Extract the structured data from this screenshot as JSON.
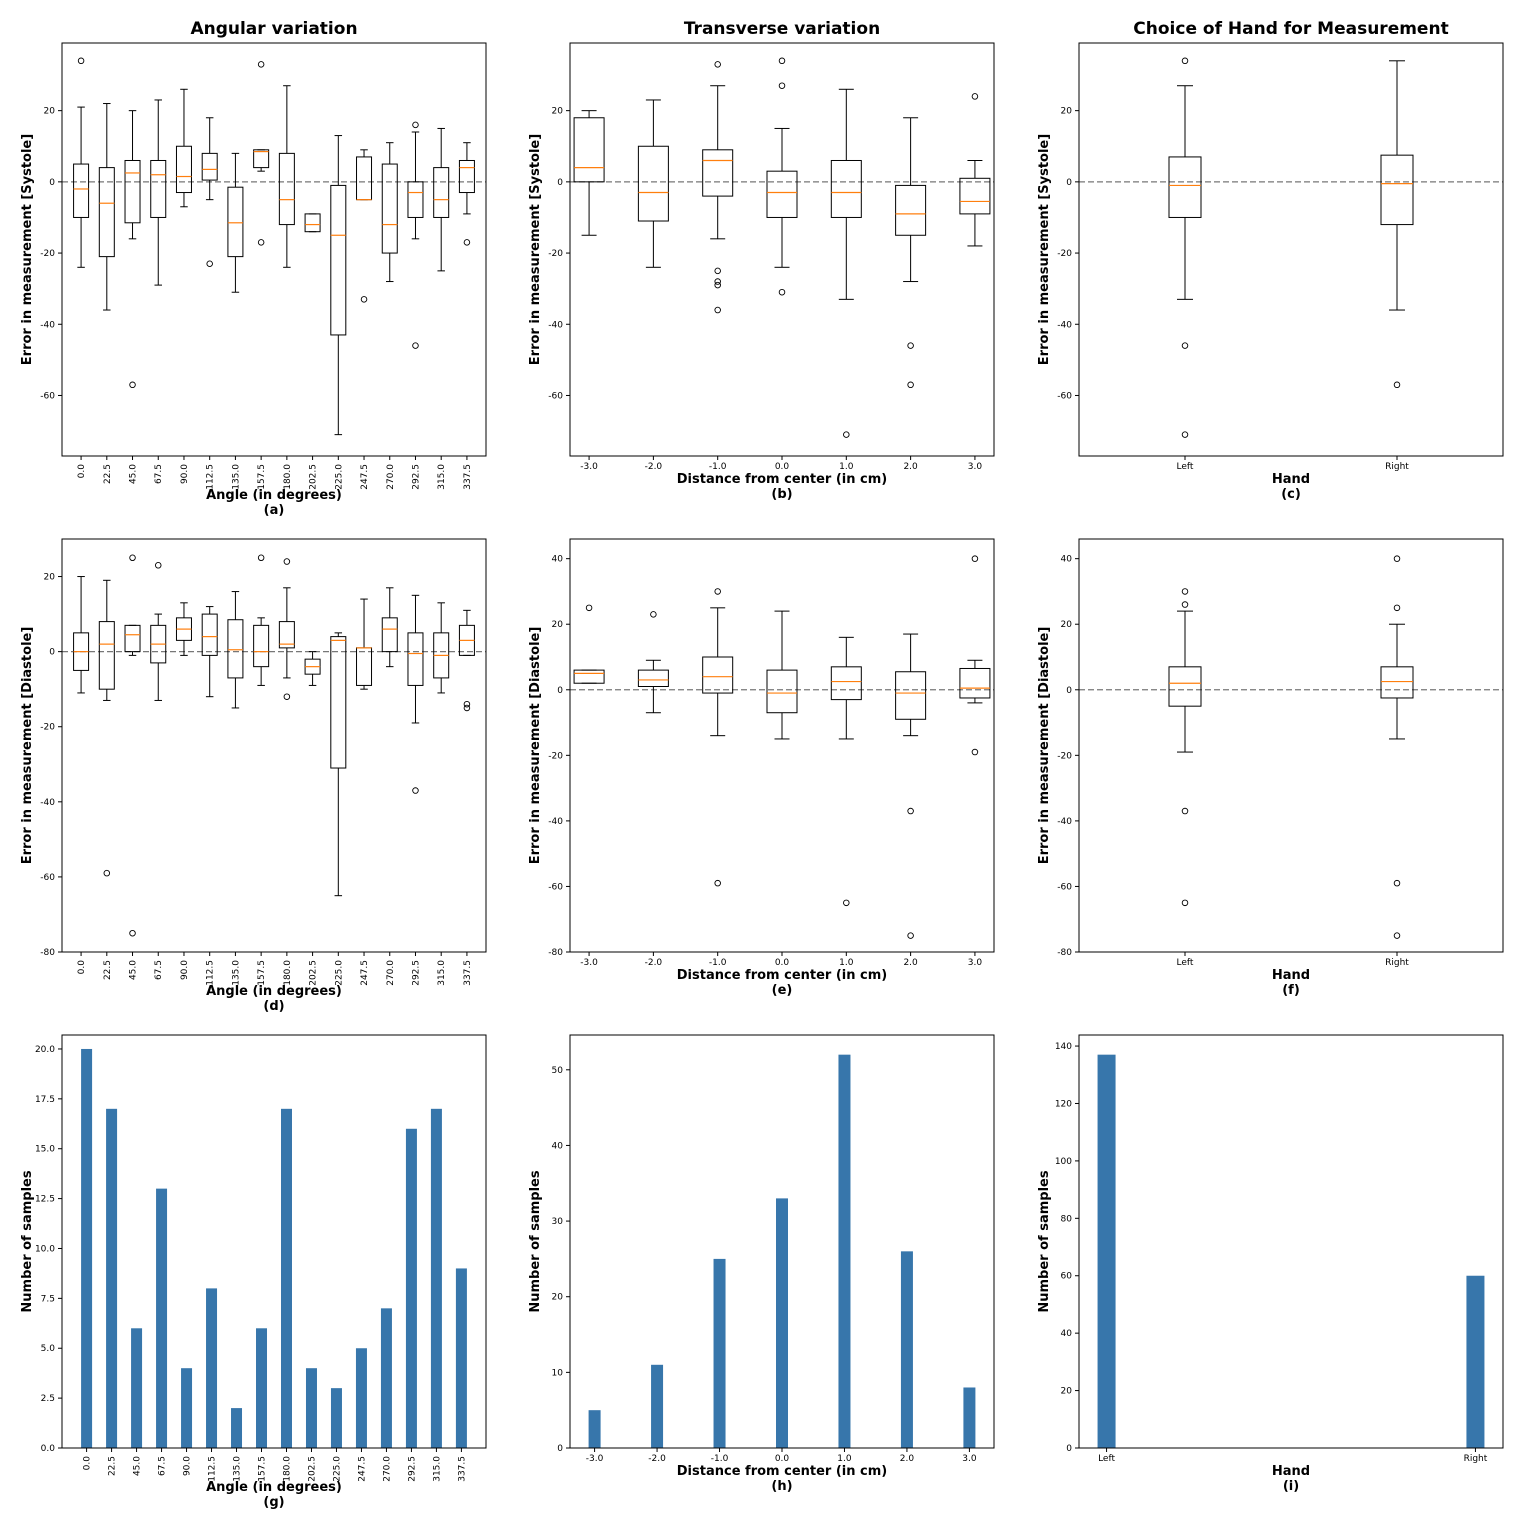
{
  "chart_data": [
    {
      "id": "a",
      "type": "box",
      "title": "Angular variation",
      "xlabel": "Angle (in degrees)",
      "ylabel": "Error in measurement [Systole]",
      "panel_label": "(a)",
      "ylim": [
        -77,
        39
      ],
      "yticks": [
        -60,
        -40,
        -20,
        0,
        20
      ],
      "rotated_xticks": true,
      "zero_line": true,
      "categories": [
        "0.0",
        "22.5",
        "45.0",
        "67.5",
        "90.0",
        "112.5",
        "135.0",
        "157.5",
        "180.0",
        "202.5",
        "225.0",
        "247.5",
        "270.0",
        "292.5",
        "315.0",
        "337.5"
      ],
      "boxes": [
        {
          "q1": -10,
          "med": -2,
          "q3": 5,
          "lo": -24,
          "hi": 21,
          "fl": [
            34
          ]
        },
        {
          "q1": -21,
          "med": -6,
          "q3": 4,
          "lo": -36,
          "hi": 22,
          "fl": []
        },
        {
          "q1": -11.5,
          "med": 2.5,
          "q3": 6,
          "lo": -16,
          "hi": 20,
          "fl": [
            -57
          ]
        },
        {
          "q1": -10,
          "med": 2,
          "q3": 6,
          "lo": -29,
          "hi": 23,
          "fl": []
        },
        {
          "q1": -3,
          "med": 1.5,
          "q3": 10,
          "lo": -7,
          "hi": 26,
          "fl": []
        },
        {
          "q1": 0.5,
          "med": 3.5,
          "q3": 8,
          "lo": -5,
          "hi": 18,
          "fl": [
            -23
          ]
        },
        {
          "q1": -21,
          "med": -11.5,
          "q3": -1.5,
          "lo": -31,
          "hi": 8,
          "fl": []
        },
        {
          "q1": 4,
          "med": 8.5,
          "q3": 9,
          "lo": 3,
          "hi": 9,
          "fl": [
            33,
            -17
          ]
        },
        {
          "q1": -12,
          "med": -5,
          "q3": 8,
          "lo": -24,
          "hi": 27,
          "fl": []
        },
        {
          "q1": -14,
          "med": -12,
          "q3": -9,
          "lo": -14,
          "hi": -9,
          "fl": []
        },
        {
          "q1": -43,
          "med": -15,
          "q3": -1,
          "lo": -71,
          "hi": 13,
          "fl": []
        },
        {
          "q1": -5,
          "med": -5,
          "q3": 7,
          "lo": -5,
          "hi": 9,
          "fl": [
            -33
          ]
        },
        {
          "q1": -20,
          "med": -12,
          "q3": 5,
          "lo": -28,
          "hi": 11,
          "fl": []
        },
        {
          "q1": -10,
          "med": -3,
          "q3": 0,
          "lo": -16,
          "hi": 14,
          "fl": [
            16,
            -46
          ]
        },
        {
          "q1": -10,
          "med": -5,
          "q3": 4,
          "lo": -25,
          "hi": 15,
          "fl": []
        },
        {
          "q1": -3,
          "med": 4,
          "q3": 6,
          "lo": -9,
          "hi": 11,
          "fl": [
            -17
          ]
        }
      ]
    },
    {
      "id": "b",
      "type": "box",
      "title": "Transverse variation",
      "xlabel": "Distance from center (in cm)",
      "ylabel": "Error in measurement [Systole]",
      "panel_label": "(b)",
      "ylim": [
        -77,
        39
      ],
      "yticks": [
        -60,
        -40,
        -20,
        0,
        20
      ],
      "rotated_xticks": false,
      "zero_line": true,
      "categories": [
        "-3.0",
        "-2.0",
        "-1.0",
        "0.0",
        "1.0",
        "2.0",
        "3.0"
      ],
      "boxes": [
        {
          "q1": 0,
          "med": 4,
          "q3": 18,
          "lo": -15,
          "hi": 20,
          "fl": []
        },
        {
          "q1": -11,
          "med": -3,
          "q3": 10,
          "lo": -24,
          "hi": 23,
          "fl": []
        },
        {
          "q1": -4,
          "med": 6,
          "q3": 9,
          "lo": -16,
          "hi": 27,
          "fl": [
            33,
            -25,
            -28,
            -29,
            -36
          ]
        },
        {
          "q1": -10,
          "med": -3,
          "q3": 3,
          "lo": -24,
          "hi": 15,
          "fl": [
            34,
            27,
            -31
          ]
        },
        {
          "q1": -10,
          "med": -3,
          "q3": 6,
          "lo": -33,
          "hi": 26,
          "fl": [
            -71
          ]
        },
        {
          "q1": -15,
          "med": -9,
          "q3": -1,
          "lo": -28,
          "hi": 18,
          "fl": [
            -46,
            -57
          ]
        },
        {
          "q1": -9,
          "med": -5.5,
          "q3": 1,
          "lo": -18,
          "hi": 6,
          "fl": [
            24
          ]
        }
      ]
    },
    {
      "id": "c",
      "type": "box",
      "title": "Choice of Hand for Measurement",
      "xlabel": "Hand",
      "ylabel": "Error in measurement [Systole]",
      "panel_label": "(c)",
      "ylim": [
        -77,
        39
      ],
      "yticks": [
        -60,
        -40,
        -20,
        0,
        20
      ],
      "rotated_xticks": false,
      "zero_line": true,
      "categories": [
        "Left",
        "Right"
      ],
      "boxes": [
        {
          "q1": -10,
          "med": -1,
          "q3": 7,
          "lo": -33,
          "hi": 27,
          "fl": [
            34,
            -46,
            -71
          ]
        },
        {
          "q1": -12,
          "med": -0.5,
          "q3": 7.5,
          "lo": -36,
          "hi": 34,
          "fl": [
            -57
          ]
        }
      ]
    },
    {
      "id": "d",
      "type": "box",
      "title": "",
      "xlabel": "Angle (in degrees)",
      "ylabel": "Error in measurement [Diastole]",
      "panel_label": "(d)",
      "ylim": [
        -80,
        30
      ],
      "yticks": [
        -80,
        -60,
        -40,
        -20,
        0,
        20
      ],
      "rotated_xticks": true,
      "zero_line": true,
      "categories": [
        "0.0",
        "22.5",
        "45.0",
        "67.5",
        "90.0",
        "112.5",
        "135.0",
        "157.5",
        "180.0",
        "202.5",
        "225.0",
        "247.5",
        "270.0",
        "292.5",
        "315.0",
        "337.5"
      ],
      "boxes": [
        {
          "q1": -5,
          "med": 0,
          "q3": 5,
          "lo": -11,
          "hi": 20,
          "fl": []
        },
        {
          "q1": -10,
          "med": 2,
          "q3": 8,
          "lo": -13,
          "hi": 19,
          "fl": [
            -59
          ]
        },
        {
          "q1": 0,
          "med": 4.5,
          "q3": 7,
          "lo": -1,
          "hi": 7,
          "fl": [
            25,
            -75
          ]
        },
        {
          "q1": -3,
          "med": 2,
          "q3": 7,
          "lo": -13,
          "hi": 10,
          "fl": [
            23
          ]
        },
        {
          "q1": 3,
          "med": 6,
          "q3": 9,
          "lo": -1,
          "hi": 13,
          "fl": []
        },
        {
          "q1": -1,
          "med": 4,
          "q3": 10,
          "lo": -12,
          "hi": 12,
          "fl": []
        },
        {
          "q1": -7,
          "med": 0.5,
          "q3": 8.5,
          "lo": -15,
          "hi": 16,
          "fl": []
        },
        {
          "q1": -4,
          "med": 0,
          "q3": 7,
          "lo": -9,
          "hi": 9,
          "fl": [
            25
          ]
        },
        {
          "q1": 1,
          "med": 2,
          "q3": 8,
          "lo": -7,
          "hi": 17,
          "fl": [
            24,
            -12
          ]
        },
        {
          "q1": -6,
          "med": -4,
          "q3": -2,
          "lo": -9,
          "hi": 0,
          "fl": []
        },
        {
          "q1": -31,
          "med": 3,
          "q3": 4,
          "lo": -65,
          "hi": 5,
          "fl": []
        },
        {
          "q1": -9,
          "med": 1,
          "q3": 1,
          "lo": -10,
          "hi": 14,
          "fl": []
        },
        {
          "q1": 0,
          "med": 6,
          "q3": 9,
          "lo": -4,
          "hi": 17,
          "fl": []
        },
        {
          "q1": -9,
          "med": -0.5,
          "q3": 5,
          "lo": -19,
          "hi": 15,
          "fl": [
            -37
          ]
        },
        {
          "q1": -7,
          "med": -1,
          "q3": 5,
          "lo": -11,
          "hi": 13,
          "fl": []
        },
        {
          "q1": -1,
          "med": 3,
          "q3": 7,
          "lo": -1,
          "hi": 11,
          "fl": [
            -14,
            -15
          ]
        }
      ]
    },
    {
      "id": "e",
      "type": "box",
      "title": "",
      "xlabel": "Distance from center (in cm)",
      "ylabel": "Error in measurement [Diastole]",
      "panel_label": "(e)",
      "ylim": [
        -80,
        46
      ],
      "yticks": [
        -80,
        -60,
        -40,
        -20,
        0,
        20,
        40
      ],
      "rotated_xticks": false,
      "zero_line": true,
      "categories": [
        "-3.0",
        "-2.0",
        "-1.0",
        "0.0",
        "1.0",
        "2.0",
        "3.0"
      ],
      "boxes": [
        {
          "q1": 2,
          "med": 5,
          "q3": 6,
          "lo": 2,
          "hi": 6,
          "fl": [
            25
          ]
        },
        {
          "q1": 1,
          "med": 3,
          "q3": 6,
          "lo": -7,
          "hi": 9,
          "fl": [
            23
          ]
        },
        {
          "q1": -1,
          "med": 4,
          "q3": 10,
          "lo": -14,
          "hi": 25,
          "fl": [
            30,
            -59
          ]
        },
        {
          "q1": -7,
          "med": -1,
          "q3": 6,
          "lo": -15,
          "hi": 24,
          "fl": []
        },
        {
          "q1": -3,
          "med": 2.5,
          "q3": 7,
          "lo": -15,
          "hi": 16,
          "fl": [
            -65
          ]
        },
        {
          "q1": -9,
          "med": -1,
          "q3": 5.5,
          "lo": -14,
          "hi": 17,
          "fl": [
            -37,
            -75
          ]
        },
        {
          "q1": -2.5,
          "med": 0.5,
          "q3": 6.5,
          "lo": -4,
          "hi": 9,
          "fl": [
            40,
            -19
          ]
        }
      ]
    },
    {
      "id": "f",
      "type": "box",
      "title": "",
      "xlabel": "Hand",
      "ylabel": "Error in measurement [Diastole]",
      "panel_label": "(f)",
      "ylim": [
        -80,
        46
      ],
      "yticks": [
        -80,
        -60,
        -40,
        -20,
        0,
        20,
        40
      ],
      "rotated_xticks": false,
      "zero_line": true,
      "categories": [
        "Left",
        "Right"
      ],
      "boxes": [
        {
          "q1": -5,
          "med": 2,
          "q3": 7,
          "lo": -19,
          "hi": 24,
          "fl": [
            30,
            26,
            -37,
            -65
          ]
        },
        {
          "q1": -2.5,
          "med": 2.5,
          "q3": 7,
          "lo": -15,
          "hi": 20,
          "fl": [
            40,
            25,
            -59,
            -75
          ]
        }
      ]
    },
    {
      "id": "g",
      "type": "bar",
      "title": "",
      "xlabel": "Angle (in degrees)",
      "ylabel": "Number of samples",
      "panel_label": "(g)",
      "ylim": [
        0,
        20.7
      ],
      "yticks": [
        0,
        2.5,
        5.0,
        7.5,
        10.0,
        12.5,
        15.0,
        17.5,
        20.0
      ],
      "ytick_decimals": 1,
      "rotated_xticks": true,
      "categories": [
        "0.0",
        "22.5",
        "45.0",
        "67.5",
        "90.0",
        "112.5",
        "135.0",
        "157.5",
        "180.0",
        "202.5",
        "225.0",
        "247.5",
        "270.0",
        "292.5",
        "315.0",
        "337.5"
      ],
      "values": [
        20,
        17,
        6,
        13,
        4,
        8,
        2,
        6,
        17,
        4,
        3,
        5,
        7,
        16,
        17,
        9
      ],
      "bar_color": "#3776ab"
    },
    {
      "id": "h",
      "type": "bar",
      "title": "",
      "xlabel": "Distance from center (in cm)",
      "ylabel": "Number of samples",
      "panel_label": "(h)",
      "ylim": [
        0,
        54.6
      ],
      "yticks": [
        0,
        10,
        20,
        30,
        40,
        50
      ],
      "ytick_decimals": 0,
      "rotated_xticks": false,
      "categories": [
        "-3.0",
        "-2.0",
        "-1.0",
        "0.0",
        "1.0",
        "2.0",
        "3.0"
      ],
      "values": [
        5,
        11,
        25,
        33,
        52,
        26,
        8
      ],
      "bar_color": "#3776ab"
    },
    {
      "id": "i",
      "type": "bar",
      "title": "",
      "xlabel": "Hand",
      "ylabel": "Number of samples",
      "panel_label": "(i)",
      "ylim": [
        0,
        143.85
      ],
      "yticks": [
        0,
        20,
        40,
        60,
        80,
        100,
        120,
        140
      ],
      "ytick_decimals": 0,
      "rotated_xticks": false,
      "categories": [
        "Left",
        "Right"
      ],
      "values": [
        137,
        60
      ],
      "bar_color": "#3776ab"
    }
  ],
  "colors": {
    "median": "#ff7f0e",
    "zero_line": "#777777",
    "bar": "#3776ab",
    "box": "#000000"
  }
}
